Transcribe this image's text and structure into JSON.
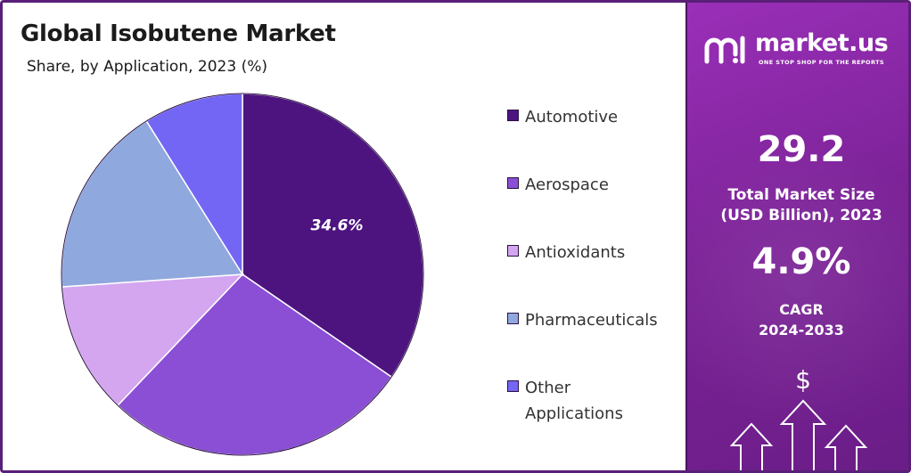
{
  "header": {
    "title": "Global Isobutene Market",
    "subtitle": "Share, by Application, 2023 (%)"
  },
  "chart_data": {
    "type": "pie",
    "title": "Global Isobutene Market",
    "subtitle": "Share, by Application, 2023 (%)",
    "categories": [
      "Automotive",
      "Aerospace",
      "Antioxidants",
      "Pharmaceuticals",
      "Other Applications"
    ],
    "values": [
      34.6,
      27.5,
      11.8,
      17.2,
      8.9
    ],
    "labels": [
      "34.6%",
      null,
      null,
      null,
      null
    ],
    "colors": [
      "#4d1480",
      "#8a4fd4",
      "#d4a6ef",
      "#8fa8dd",
      "#7366f5"
    ],
    "legend_position": "right"
  },
  "legend": {
    "items": [
      {
        "label": "Automotive",
        "color": "#4d1480"
      },
      {
        "label": "Aerospace",
        "color": "#8a4fd4"
      },
      {
        "label": "Antioxidants",
        "color": "#d4a6ef"
      },
      {
        "label": "Pharmaceuticals",
        "color": "#8fa8dd"
      },
      {
        "label_line1": "Other",
        "label_line2": "Applications",
        "color": "#7366f5"
      }
    ]
  },
  "side_panel": {
    "brand": "market.us",
    "tagline": "ONE STOP SHOP FOR THE REPORTS",
    "market_size_value": "29.2",
    "market_size_label_line1": "Total Market Size",
    "market_size_label_line2": "(USD Billion), 2023",
    "cagr_value": "4.9%",
    "cagr_label_line1": "CAGR",
    "cagr_label_line2": "2024-2033",
    "dollar_symbol": "$",
    "logo_icon": "market-us-logo-icon",
    "arrows_icon": "growth-arrows-icon",
    "accent_color": "#7d2399"
  }
}
